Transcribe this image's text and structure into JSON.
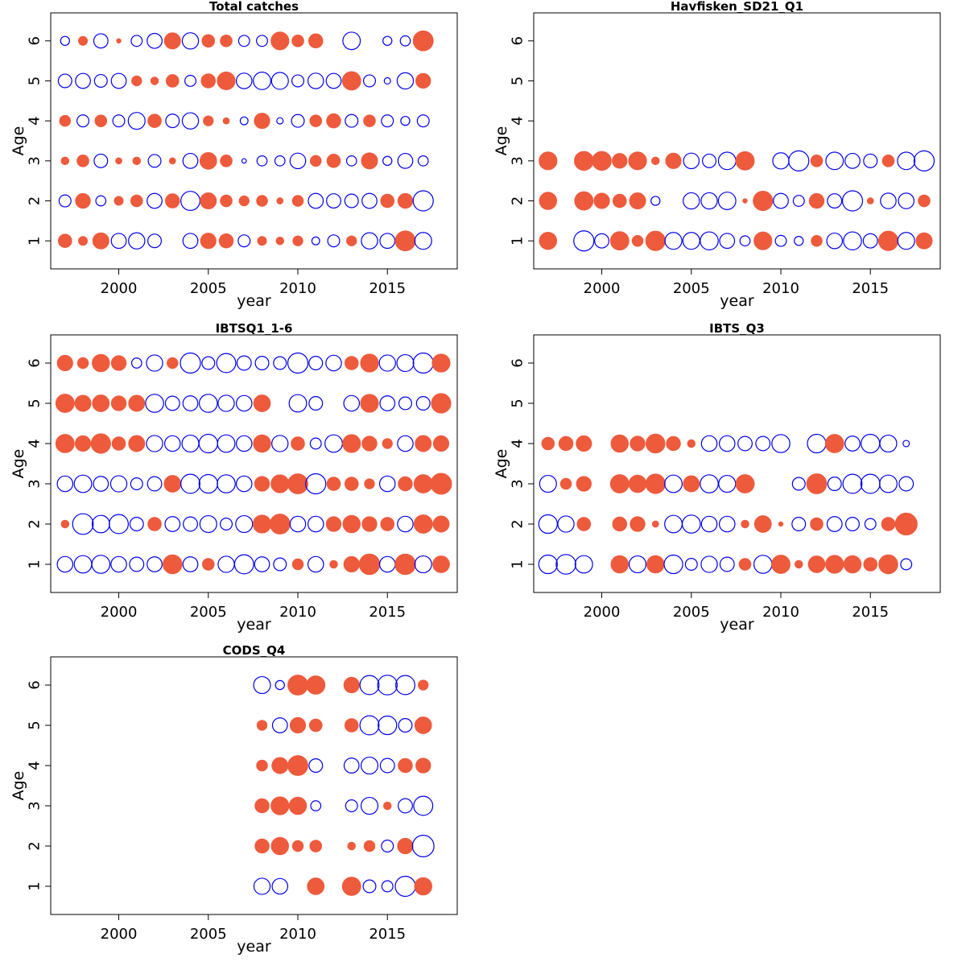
{
  "colors": {
    "positive": "#EE5A3C",
    "negative": "#0000EE",
    "frame": "#000000",
    "background": "#ffffff"
  },
  "chart_data": [
    {
      "type": "scatter",
      "title": "Total catches",
      "xlabel": "year",
      "ylabel": "Age",
      "xlim": [
        1996.2,
        2018.9
      ],
      "ylim": [
        0.3,
        6.7
      ],
      "xticks": [
        2000,
        2005,
        2010,
        2015
      ],
      "yticks": [
        1,
        2,
        3,
        4,
        5,
        6
      ],
      "years": [
        1997,
        1998,
        1999,
        2000,
        2001,
        2002,
        2003,
        2004,
        2005,
        2006,
        2007,
        2008,
        2009,
        2010,
        2011,
        2012,
        2013,
        2014,
        2015,
        2016,
        2017
      ],
      "residuals": {
        "6": [
          -0.2,
          0.2,
          -0.5,
          0.05,
          -0.3,
          -0.55,
          0.65,
          -0.65,
          0.4,
          0.35,
          -0.3,
          -0.3,
          0.8,
          0.35,
          0.5,
          0,
          -0.75,
          0,
          -0.2,
          -0.25,
          1.0
        ],
        "5": [
          -0.45,
          -0.55,
          -0.4,
          -0.55,
          0.25,
          0.15,
          0.4,
          -0.3,
          0.5,
          0.8,
          -0.6,
          -0.75,
          -0.7,
          -0.35,
          -0.6,
          -0.55,
          0.85,
          -0.35,
          -0.1,
          -0.65,
          0.55
        ],
        "4": [
          0.3,
          -0.35,
          0.35,
          -0.35,
          -0.7,
          0.45,
          -0.45,
          -0.65,
          0.25,
          0.1,
          -0.15,
          0.6,
          -0.1,
          -0.4,
          0.35,
          0.5,
          -0.4,
          0.35,
          -0.35,
          -0.2,
          -0.35
        ],
        "3": [
          0.15,
          0.35,
          -0.45,
          0.1,
          0.15,
          -0.4,
          0.1,
          -0.55,
          0.7,
          0.35,
          -0.05,
          -0.25,
          -0.25,
          -0.6,
          0.3,
          0.45,
          -0.25,
          0.65,
          -0.2,
          -0.55,
          -0.25
        ],
        "2": [
          -0.35,
          0.55,
          -0.25,
          0.2,
          0.35,
          -0.55,
          0.5,
          -0.9,
          0.65,
          0.35,
          0.25,
          0.3,
          0.1,
          0.3,
          -0.55,
          -0.5,
          -0.45,
          -0.55,
          0.45,
          0.55,
          -1.0
        ],
        "1": [
          0.45,
          0.2,
          0.65,
          -0.55,
          -0.65,
          -0.45,
          0,
          -0.55,
          0.6,
          0.5,
          -0.35,
          0.2,
          0.15,
          0.25,
          -0.15,
          -0.35,
          0.25,
          -0.65,
          -0.55,
          1.0,
          -0.7
        ]
      }
    },
    {
      "type": "scatter",
      "title": "Havfisken_SD21_Q1",
      "xlabel": "year",
      "ylabel": "Age",
      "xlim": [
        1996.2,
        2018.9
      ],
      "ylim": [
        0.3,
        6.7
      ],
      "xticks": [
        2000,
        2005,
        2010,
        2015
      ],
      "yticks": [
        1,
        2,
        3,
        4,
        5,
        6
      ],
      "years": [
        1997,
        1998,
        1999,
        2000,
        2001,
        2002,
        2003,
        2004,
        2005,
        2006,
        2007,
        2008,
        2009,
        2010,
        2011,
        2012,
        2013,
        2014,
        2015,
        2016,
        2017,
        2018
      ],
      "residuals": {
        "3": [
          0.8,
          0,
          0.9,
          0.9,
          0.55,
          0.8,
          0.15,
          0.6,
          -0.6,
          -0.45,
          -0.75,
          0.85,
          0,
          -0.65,
          -1.0,
          0.35,
          -0.75,
          -0.55,
          -0.45,
          0.35,
          -0.75,
          -1.0
        ],
        "2": [
          0.75,
          0,
          0.85,
          0.6,
          0.45,
          0.65,
          -0.2,
          0,
          -0.65,
          -0.65,
          -0.75,
          0.05,
          0.95,
          -0.55,
          -0.3,
          0.55,
          -0.5,
          -1.0,
          0.1,
          -0.6,
          -0.6,
          0.35
        ],
        "1": [
          0.75,
          0,
          -1.0,
          -0.5,
          0.85,
          0.3,
          0.95,
          -0.7,
          -0.7,
          -0.8,
          -0.55,
          -0.25,
          0.8,
          -0.3,
          -0.2,
          0.3,
          -0.6,
          -0.8,
          -0.5,
          0.95,
          -0.7,
          0.65
        ]
      }
    },
    {
      "type": "scatter",
      "title": "IBTSQ1_1-6",
      "xlabel": "year",
      "ylabel": "Age",
      "xlim": [
        1996.2,
        2018.9
      ],
      "ylim": [
        0.3,
        6.7
      ],
      "xticks": [
        2000,
        2005,
        2010,
        2015
      ],
      "yticks": [
        1,
        2,
        3,
        4,
        5,
        6
      ],
      "years": [
        1997,
        1998,
        1999,
        2000,
        2001,
        2002,
        2003,
        2004,
        2005,
        2006,
        2007,
        2008,
        2009,
        2010,
        2011,
        2012,
        2013,
        2014,
        2015,
        2016,
        2017,
        2018
      ],
      "residuals": {
        "6": [
          0.6,
          0.3,
          0.75,
          0.55,
          -0.25,
          -0.65,
          0.3,
          -1.0,
          -0.4,
          -0.9,
          -0.5,
          -0.45,
          -0.4,
          -1.0,
          -0.45,
          -0.6,
          0.45,
          0.8,
          -0.65,
          -0.7,
          -1.0,
          0.8
        ],
        "5": [
          0.85,
          0.65,
          0.7,
          0.55,
          0.65,
          -0.8,
          -0.5,
          -0.55,
          -0.8,
          -0.65,
          -0.6,
          0.7,
          0,
          -0.75,
          -0.45,
          0,
          -0.6,
          0.8,
          -0.55,
          -0.4,
          -0.45,
          0.95
        ],
        "4": [
          0.85,
          0.6,
          0.95,
          0.45,
          0.65,
          -0.65,
          -0.6,
          -0.7,
          -0.85,
          -0.75,
          -0.6,
          0.75,
          -0.65,
          0.45,
          -0.3,
          -0.75,
          0.8,
          0.55,
          0.25,
          -0.6,
          0.65,
          0.6
        ],
        "3": [
          -0.6,
          -0.75,
          -0.55,
          -0.65,
          -0.35,
          -0.5,
          0.7,
          -0.9,
          -0.85,
          -0.8,
          -0.6,
          0.55,
          0.8,
          1.0,
          -1.0,
          0.45,
          0.45,
          0.25,
          -0.6,
          0.5,
          0.85,
          1.1
        ],
        "2": [
          0.15,
          -1.05,
          -0.75,
          -0.9,
          -0.45,
          0.45,
          -0.55,
          -0.5,
          -0.7,
          -0.35,
          -0.7,
          0.8,
          1.0,
          -0.6,
          -0.6,
          0.55,
          0.75,
          0.55,
          0.45,
          -0.6,
          0.85,
          0.65
        ],
        "1": [
          -0.6,
          -0.75,
          -0.8,
          -0.6,
          -0.5,
          -0.55,
          0.9,
          -0.55,
          0.35,
          -0.65,
          -0.9,
          -0.55,
          -0.4,
          0.3,
          -0.6,
          0.15,
          0.6,
          1.05,
          -0.6,
          1.05,
          -0.7,
          0.7
        ]
      }
    },
    {
      "type": "scatter",
      "title": "IBTS_Q3",
      "xlabel": "year",
      "ylabel": "Age",
      "xlim": [
        1996.2,
        2018.9
      ],
      "ylim": [
        0.3,
        6.7
      ],
      "xticks": [
        2000,
        2005,
        2010,
        2015
      ],
      "yticks": [
        1,
        2,
        3,
        4,
        5,
        6
      ],
      "years": [
        1997,
        1998,
        1999,
        2000,
        2001,
        2002,
        2003,
        2004,
        2005,
        2006,
        2007,
        2008,
        2009,
        2010,
        2011,
        2012,
        2013,
        2014,
        2015,
        2016,
        2017
      ],
      "residuals": {
        "4": [
          0.4,
          0.5,
          0.6,
          0,
          0.75,
          0.55,
          0.9,
          0.5,
          0.15,
          -0.6,
          -0.6,
          -0.5,
          -0.5,
          -0.8,
          0,
          -0.85,
          0.85,
          -0.55,
          -0.85,
          -0.7,
          -0.1
        ],
        "3": [
          -0.7,
          0.3,
          0.55,
          0,
          0.85,
          0.75,
          0.95,
          -0.75,
          0.65,
          -0.8,
          -0.7,
          0.85,
          0,
          0,
          -0.4,
          1.0,
          -0.45,
          -0.9,
          -0.9,
          -0.75,
          -0.5
        ],
        "2": [
          -0.85,
          -0.65,
          0.45,
          0,
          0.5,
          0.55,
          0.1,
          -0.75,
          -0.8,
          -0.6,
          -0.6,
          0.15,
          0.7,
          0.05,
          -0.45,
          0.4,
          -0.55,
          -0.45,
          -0.3,
          0.45,
          1.2
        ],
        "1": [
          -0.85,
          -0.95,
          -0.75,
          0,
          0.75,
          -0.7,
          0.75,
          -0.85,
          -0.35,
          -0.65,
          -0.5,
          0.35,
          -0.8,
          0.85,
          0.15,
          0.7,
          0.8,
          0.75,
          0.45,
          0.9,
          -0.3
        ]
      }
    },
    {
      "type": "scatter",
      "title": "CODS_Q4",
      "xlabel": "year",
      "ylabel": "Age",
      "xlim": [
        1996.2,
        2018.9
      ],
      "ylim": [
        0.3,
        6.7
      ],
      "xticks": [
        2000,
        2005,
        2010,
        2015
      ],
      "yticks": [
        1,
        2,
        3,
        4,
        5,
        6
      ],
      "years": [
        2008,
        2009,
        2010,
        2011,
        2012,
        2013,
        2014,
        2015,
        2016,
        2017
      ],
      "residuals": {
        "6": [
          -0.7,
          -0.2,
          1.0,
          0.85,
          0,
          0.6,
          -0.9,
          -0.95,
          -0.9,
          0.25
        ],
        "5": [
          0.25,
          -0.55,
          0.6,
          0.4,
          0,
          0.45,
          -0.9,
          -0.85,
          -0.45,
          0.7
        ],
        "4": [
          0.3,
          0.65,
          1.0,
          -0.45,
          0,
          -0.55,
          -0.7,
          -0.5,
          0.5,
          0.55
        ],
        "3": [
          0.5,
          0.8,
          0.75,
          -0.25,
          0,
          -0.35,
          -0.7,
          0.15,
          -0.5,
          -0.9
        ],
        "2": [
          0.5,
          0.75,
          0.3,
          0.35,
          0,
          0.15,
          0.3,
          -0.35,
          0.6,
          -1.15
        ],
        "1": [
          -0.65,
          -0.6,
          0,
          0.7,
          0,
          0.85,
          -0.4,
          -0.3,
          -1.0,
          0.75
        ]
      }
    }
  ]
}
